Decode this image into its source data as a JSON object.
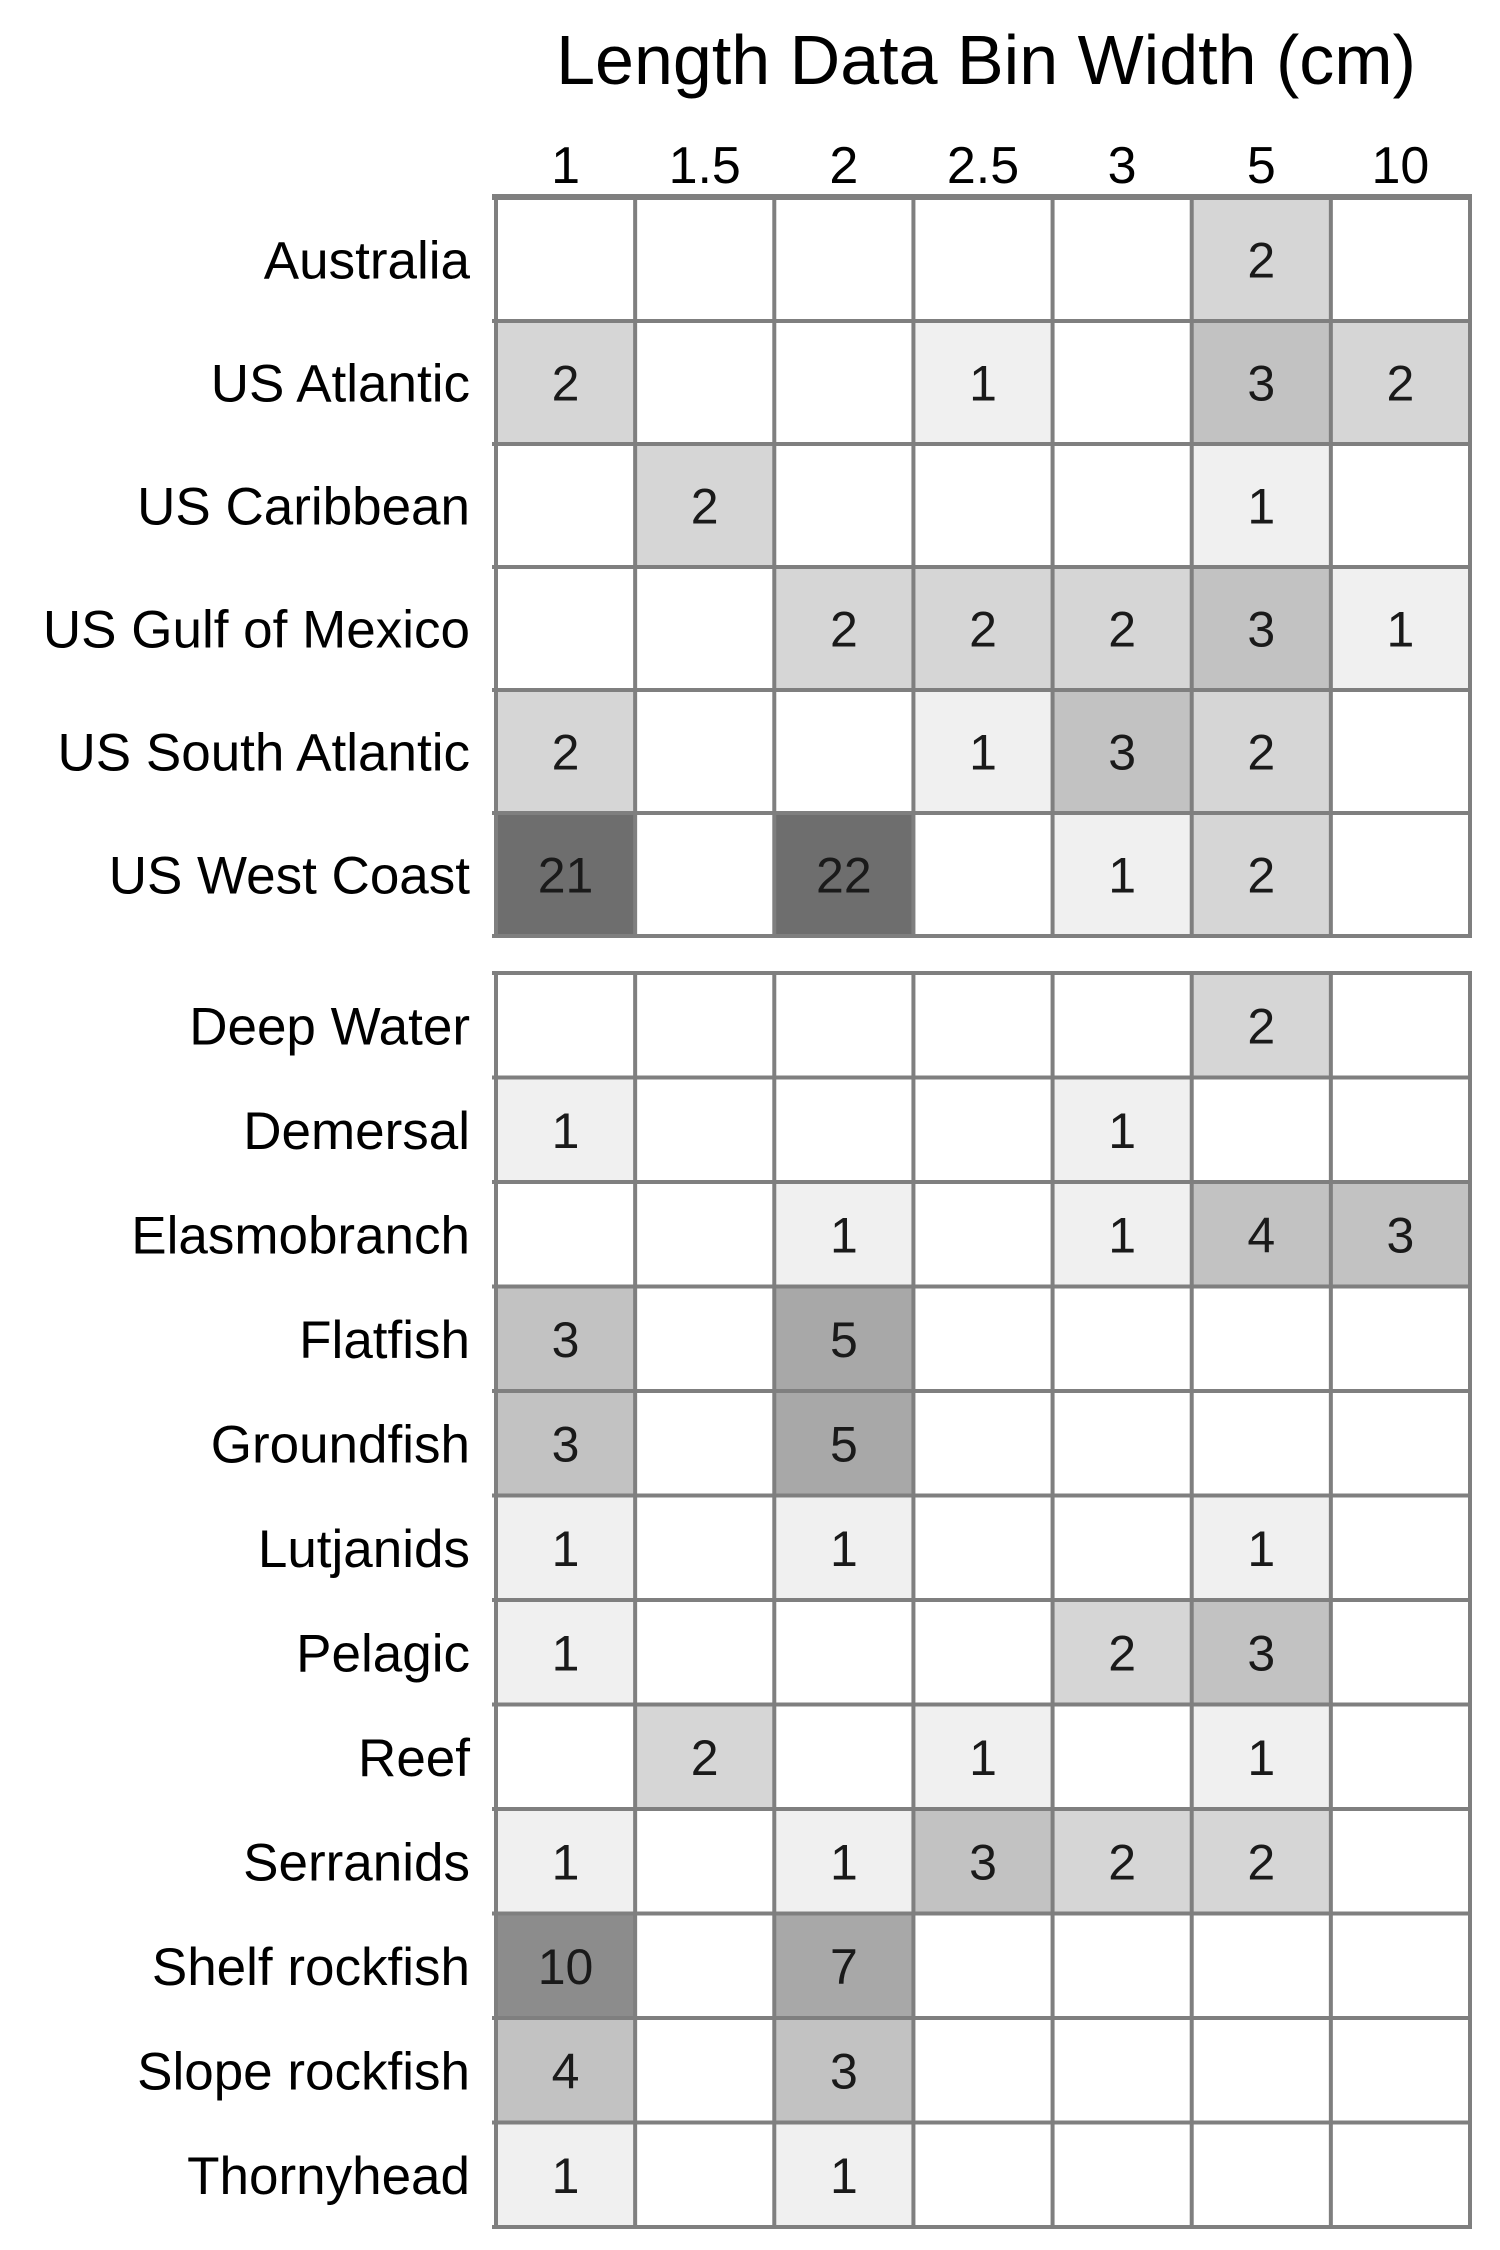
{
  "chart_data": {
    "type": "heatmap",
    "title": "Length Data Bin Width (cm)",
    "columns": [
      "1",
      "1.5",
      "2",
      "2.5",
      "3",
      "5",
      "10"
    ],
    "colors": {
      "level_1": "#f0f0f0",
      "level_2": "#d6d6d6",
      "level_3_4": "#c2c2c2",
      "level_5_7": "#a8a8a8",
      "level_10": "#8c8c8c",
      "level_20_plus": "#6e6e6e",
      "grid": "#7f7f7f"
    },
    "groups": [
      {
        "rows": [
          {
            "label": "Australia",
            "values": [
              null,
              null,
              null,
              null,
              null,
              2,
              null
            ]
          },
          {
            "label": "US Atlantic",
            "values": [
              2,
              null,
              null,
              1,
              null,
              3,
              2
            ]
          },
          {
            "label": "US Caribbean",
            "values": [
              null,
              2,
              null,
              null,
              null,
              1,
              null
            ]
          },
          {
            "label": "US Gulf of Mexico",
            "values": [
              null,
              null,
              2,
              2,
              2,
              3,
              1
            ]
          },
          {
            "label": "US South Atlantic",
            "values": [
              2,
              null,
              null,
              1,
              3,
              2,
              null
            ]
          },
          {
            "label": "US West Coast",
            "values": [
              21,
              null,
              22,
              null,
              1,
              2,
              null
            ]
          }
        ]
      },
      {
        "rows": [
          {
            "label": "Deep Water",
            "values": [
              null,
              null,
              null,
              null,
              null,
              2,
              null
            ]
          },
          {
            "label": "Demersal",
            "values": [
              1,
              null,
              null,
              null,
              1,
              null,
              null
            ]
          },
          {
            "label": "Elasmobranch",
            "values": [
              null,
              null,
              1,
              null,
              1,
              4,
              3
            ]
          },
          {
            "label": "Flatfish",
            "values": [
              3,
              null,
              5,
              null,
              null,
              null,
              null
            ]
          },
          {
            "label": "Groundfish",
            "values": [
              3,
              null,
              5,
              null,
              null,
              null,
              null
            ]
          },
          {
            "label": "Lutjanids",
            "values": [
              1,
              null,
              1,
              null,
              null,
              1,
              null
            ]
          },
          {
            "label": "Pelagic",
            "values": [
              1,
              null,
              null,
              null,
              2,
              3,
              null
            ]
          },
          {
            "label": "Reef",
            "values": [
              null,
              2,
              null,
              1,
              null,
              1,
              null
            ]
          },
          {
            "label": "Serranids",
            "values": [
              1,
              null,
              1,
              3,
              2,
              2,
              null
            ]
          },
          {
            "label": "Shelf rockfish",
            "values": [
              10,
              null,
              7,
              null,
              null,
              null,
              null
            ]
          },
          {
            "label": "Slope rockfish",
            "values": [
              4,
              null,
              3,
              null,
              null,
              null,
              null
            ]
          },
          {
            "label": "Thornyhead",
            "values": [
              1,
              null,
              1,
              null,
              null,
              null,
              null
            ]
          }
        ]
      }
    ]
  }
}
